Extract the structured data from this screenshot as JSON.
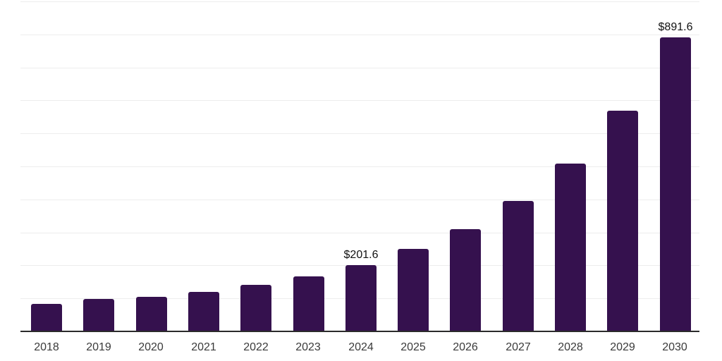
{
  "chart_data": {
    "type": "bar",
    "categories": [
      "2018",
      "2019",
      "2020",
      "2021",
      "2022",
      "2023",
      "2024",
      "2025",
      "2026",
      "2027",
      "2028",
      "2029",
      "2030"
    ],
    "values": [
      83,
      99,
      105,
      120,
      140,
      167,
      201.6,
      249,
      310,
      395,
      508,
      669,
      891.6
    ],
    "annotations": [
      {
        "category": "2024",
        "text": "$201.6"
      },
      {
        "category": "2030",
        "text": "$891.6"
      }
    ],
    "ylim": [
      0,
      1000
    ],
    "gridline_step": 100,
    "grid": true,
    "legend_position": "none",
    "y_axis_tick_labels": "hidden",
    "colors": {
      "bar": "#35114e",
      "axis_line": "#2b2b2b",
      "gridline": "#ededed",
      "annotation_text": "#111111",
      "tick_label": "#3a3a3a",
      "background": "#ffffff"
    }
  }
}
